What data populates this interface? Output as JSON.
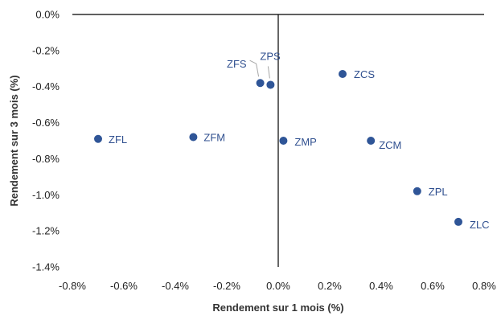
{
  "chart_data": {
    "type": "scatter",
    "title": "",
    "xlabel": "Rendement sur 1 mois (%)",
    "ylabel": "Rendement sur 3 mois (%)",
    "xlim": [
      -0.008,
      0.008
    ],
    "ylim": [
      -0.014,
      0.0
    ],
    "x_ticks": [
      -0.008,
      -0.006,
      -0.004,
      -0.002,
      0.0,
      0.002,
      0.004,
      0.006,
      0.008
    ],
    "x_tick_labels": [
      "-0.8%",
      "-0.6%",
      "-0.4%",
      "-0.2%",
      "0.0%",
      "0.2%",
      "0.4%",
      "0.6%",
      "0.8%"
    ],
    "y_ticks": [
      0.0,
      -0.002,
      -0.004,
      -0.006,
      -0.008,
      -0.01,
      -0.012,
      -0.014
    ],
    "y_tick_labels": [
      "0.0%",
      "-0.2%",
      "-0.4%",
      "-0.6%",
      "-0.8%",
      "-1.0%",
      "-1.2%",
      "-1.4%"
    ],
    "grid": false,
    "marker_color": "#2f5597",
    "label_color": "#2f4f8f",
    "points": [
      {
        "label": "ZFL",
        "x": -0.007,
        "y": -0.0069
      },
      {
        "label": "ZFM",
        "x": -0.0033,
        "y": -0.0068
      },
      {
        "label": "ZFS",
        "x": -0.0007,
        "y": -0.0038
      },
      {
        "label": "ZPS",
        "x": -0.0003,
        "y": -0.0039
      },
      {
        "label": "ZMP",
        "x": 0.0002,
        "y": -0.007
      },
      {
        "label": "ZCS",
        "x": 0.0025,
        "y": -0.0033
      },
      {
        "label": "ZCM",
        "x": 0.0036,
        "y": -0.007
      },
      {
        "label": "ZPL",
        "x": 0.0054,
        "y": -0.0098
      },
      {
        "label": "ZLC",
        "x": 0.007,
        "y": -0.0115
      }
    ]
  }
}
